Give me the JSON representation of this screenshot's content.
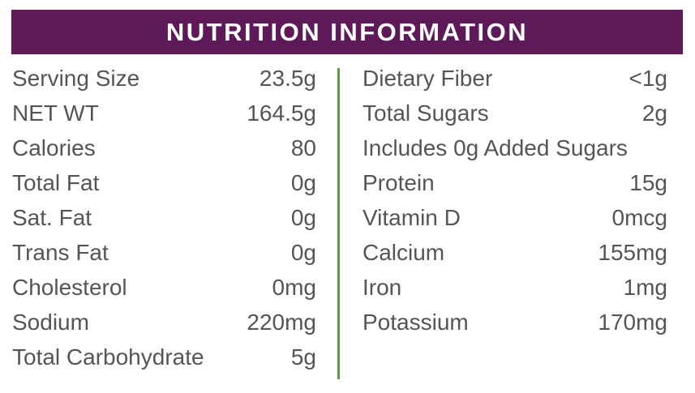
{
  "header": {
    "title": "NUTRITION INFORMATION"
  },
  "left_rows": [
    {
      "label": "Serving Size",
      "value": "23.5g"
    },
    {
      "label": "NET WT",
      "value": "164.5g"
    },
    {
      "label": "Calories",
      "value": "80"
    },
    {
      "label": "Total Fat",
      "value": "0g"
    },
    {
      "label": "Sat. Fat",
      "value": "0g"
    },
    {
      "label": "Trans Fat",
      "value": "0g"
    },
    {
      "label": "Cholesterol",
      "value": "0mg"
    },
    {
      "label": "Sodium",
      "value": "220mg"
    },
    {
      "label": "Total Carbohydrate",
      "value": "5g"
    }
  ],
  "right_rows": [
    {
      "label": "Dietary Fiber",
      "value": "<1g"
    },
    {
      "label": "Total Sugars",
      "value": "2g"
    },
    {
      "label": "Includes 0g Added Sugars"
    },
    {
      "label": "Protein",
      "value": "15g"
    },
    {
      "label": "Vitamin D",
      "value": "0mcg"
    },
    {
      "label": "Calcium",
      "value": "155mg"
    },
    {
      "label": "Iron",
      "value": "1mg"
    },
    {
      "label": "Potassium",
      "value": "170mg"
    }
  ]
}
